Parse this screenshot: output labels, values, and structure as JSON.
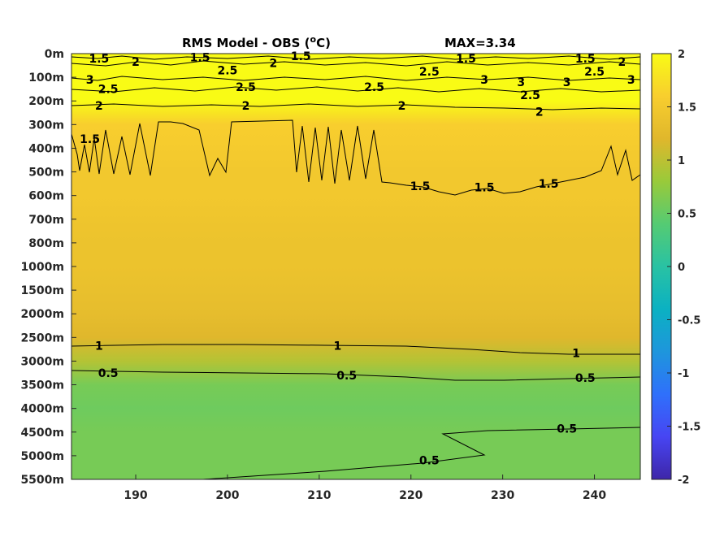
{
  "chart_data": {
    "type": "heatmap",
    "title": "RMS Model - OBS (",
    "title_unit_sup": "o",
    "title_unit_tail": "C)",
    "max_label": "MAX=3.34",
    "x_ticks": [
      190,
      200,
      210,
      220,
      230,
      240
    ],
    "x_range": [
      183,
      245
    ],
    "y_tick_labels": [
      "0m",
      "100m",
      "200m",
      "300m",
      "400m",
      "500m",
      "600m",
      "700m",
      "800m",
      "1000m",
      "1500m",
      "2000m",
      "2500m",
      "3000m",
      "3500m",
      "4000m",
      "4500m",
      "5000m",
      "5500m"
    ],
    "colorbar": {
      "range": [
        -2,
        2
      ],
      "ticks": [
        2,
        1.5,
        1,
        0.5,
        0,
        -0.5,
        -1,
        -1.5,
        -2
      ],
      "tick_labels": [
        "2",
        "1.5",
        "1",
        "0.5",
        "0",
        "-0.5",
        "-1",
        "-1.5",
        "-2"
      ],
      "colormap": "parula"
    },
    "depth_profile": {
      "depth_level_index": [
        0,
        1,
        2,
        3,
        4,
        5,
        6,
        7,
        8,
        9,
        10,
        11,
        12,
        13,
        14,
        15,
        16,
        17,
        18
      ],
      "rms_value": [
        2.0,
        2.0,
        2.0,
        1.6,
        1.55,
        1.5,
        1.5,
        1.45,
        1.4,
        1.4,
        1.35,
        1.3,
        1.2,
        0.95,
        0.6,
        0.55,
        0.6,
        0.6,
        0.6
      ]
    },
    "contour_labels": [
      {
        "text": "1.5",
        "x": 186,
        "depth_index": 0.2
      },
      {
        "text": "2",
        "x": 190,
        "depth_index": 0.35
      },
      {
        "text": "1.5",
        "x": 197,
        "depth_index": 0.15
      },
      {
        "text": "2.5",
        "x": 200,
        "depth_index": 0.7
      },
      {
        "text": "1.5",
        "x": 208,
        "depth_index": 0.1
      },
      {
        "text": "2",
        "x": 205,
        "depth_index": 0.4
      },
      {
        "text": "2.5",
        "x": 222,
        "depth_index": 0.75
      },
      {
        "text": "1.5",
        "x": 226,
        "depth_index": 0.2
      },
      {
        "text": "1.5",
        "x": 239,
        "depth_index": 0.2
      },
      {
        "text": "2",
        "x": 243,
        "depth_index": 0.35
      },
      {
        "text": "2.5",
        "x": 240,
        "depth_index": 0.75
      },
      {
        "text": "3",
        "x": 185,
        "depth_index": 1.1
      },
      {
        "text": "3",
        "x": 228,
        "depth_index": 1.1
      },
      {
        "text": "3",
        "x": 232,
        "depth_index": 1.2
      },
      {
        "text": "3",
        "x": 244,
        "depth_index": 1.1
      },
      {
        "text": "3",
        "x": 237,
        "depth_index": 1.2
      },
      {
        "text": "2.5",
        "x": 187,
        "depth_index": 1.5
      },
      {
        "text": "2.5",
        "x": 202,
        "depth_index": 1.4
      },
      {
        "text": "2.5",
        "x": 216,
        "depth_index": 1.4
      },
      {
        "text": "2.5",
        "x": 233,
        "depth_index": 1.75
      },
      {
        "text": "2",
        "x": 186,
        "depth_index": 2.2
      },
      {
        "text": "2",
        "x": 202,
        "depth_index": 2.2
      },
      {
        "text": "2",
        "x": 219,
        "depth_index": 2.2
      },
      {
        "text": "2",
        "x": 234,
        "depth_index": 2.45
      },
      {
        "text": "1.5",
        "x": 185,
        "depth_index": 3.6
      },
      {
        "text": "1.5",
        "x": 221,
        "depth_index": 5.6
      },
      {
        "text": "1.5",
        "x": 228,
        "depth_index": 5.65
      },
      {
        "text": "1.5",
        "x": 235,
        "depth_index": 5.5
      },
      {
        "text": "1",
        "x": 186,
        "depth_index": 12.35
      },
      {
        "text": "1",
        "x": 212,
        "depth_index": 12.35
      },
      {
        "text": "1",
        "x": 238,
        "depth_index": 12.65
      },
      {
        "text": "0.5",
        "x": 187,
        "depth_index": 13.5
      },
      {
        "text": "0.5",
        "x": 213,
        "depth_index": 13.6
      },
      {
        "text": "0.5",
        "x": 239,
        "depth_index": 13.7
      },
      {
        "text": "0.5",
        "x": 237,
        "depth_index": 15.85
      },
      {
        "text": "0.5",
        "x": 222,
        "depth_index": 17.2
      }
    ]
  }
}
